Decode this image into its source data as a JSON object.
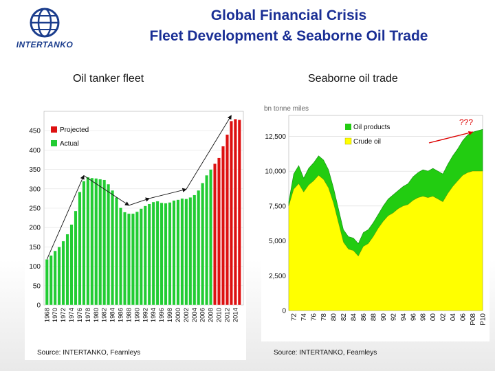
{
  "header": {
    "logo_text": "INTERTANKO",
    "title_line1": "Global Financial Crisis",
    "title_line2": "Fleet Development & Seaborne Oil Trade"
  },
  "left": {
    "heading": "Oil tanker fleet",
    "source": "Source: INTERTANKO, Fearnleys"
  },
  "right": {
    "heading": "Seaborne oil trade",
    "source": "Source: INTERTANKO, Fearnleys"
  },
  "colors": {
    "actual": "#22cc33",
    "projected": "#dd1111",
    "crude": "#ffff00",
    "products": "#22cc11",
    "title": "#1a2f95",
    "annotation": "#dd0000"
  },
  "chart_data": [
    {
      "type": "bar",
      "title": "Oil tanker fleet",
      "ylim": [
        0,
        500
      ],
      "yticks": [
        0,
        50,
        100,
        150,
        200,
        250,
        300,
        350,
        400,
        450
      ],
      "legend": [
        "Projected",
        "Actual"
      ],
      "legend_position": "top-left",
      "x_tick_labels": [
        "1968",
        "1970",
        "1972",
        "1974",
        "1976",
        "1978",
        "1980",
        "1982",
        "1984",
        "1986",
        "1988",
        "1990",
        "1992",
        "1994",
        "1996",
        "1998",
        "2000",
        "2002",
        "2004",
        "2006",
        "2008",
        "2010",
        "2012",
        "2014"
      ],
      "years": [
        1968,
        1969,
        1970,
        1971,
        1972,
        1973,
        1974,
        1975,
        1976,
        1977,
        1978,
        1979,
        1980,
        1981,
        1982,
        1983,
        1984,
        1985,
        1986,
        1987,
        1988,
        1989,
        1990,
        1991,
        1992,
        1993,
        1994,
        1995,
        1996,
        1997,
        1998,
        1999,
        2000,
        2001,
        2002,
        2003,
        2004,
        2005,
        2006,
        2007,
        2008,
        2009,
        2010,
        2011,
        2012,
        2013,
        2014,
        2015
      ],
      "values": [
        118,
        128,
        140,
        150,
        165,
        183,
        208,
        243,
        292,
        320,
        330,
        328,
        327,
        325,
        323,
        312,
        296,
        278,
        251,
        240,
        236,
        236,
        241,
        249,
        256,
        261,
        266,
        268,
        264,
        263,
        265,
        270,
        272,
        275,
        274,
        278,
        284,
        296,
        315,
        335,
        350,
        365,
        380,
        410,
        440,
        475,
        480,
        478
      ],
      "status": [
        "Actual",
        "Actual",
        "Actual",
        "Actual",
        "Actual",
        "Actual",
        "Actual",
        "Actual",
        "Actual",
        "Actual",
        "Actual",
        "Actual",
        "Actual",
        "Actual",
        "Actual",
        "Actual",
        "Actual",
        "Actual",
        "Actual",
        "Actual",
        "Actual",
        "Actual",
        "Actual",
        "Actual",
        "Actual",
        "Actual",
        "Actual",
        "Actual",
        "Actual",
        "Actual",
        "Actual",
        "Actual",
        "Actual",
        "Actual",
        "Actual",
        "Actual",
        "Actual",
        "Actual",
        "Actual",
        "Actual",
        "Actual",
        "Projected",
        "Projected",
        "Projected",
        "Projected",
        "Projected",
        "Projected",
        "Projected"
      ]
    },
    {
      "type": "area",
      "title": "Seaborne oil trade",
      "ylabel": "bn tonne miles",
      "ylim": [
        0,
        14000
      ],
      "yticks": [
        0,
        2500,
        5000,
        7500,
        10000,
        12500
      ],
      "ytick_labels": [
        "0",
        "2,500",
        "5,000",
        "7,500",
        "10,000",
        "12,500"
      ],
      "x_tick_labels": [
        "72",
        "74",
        "76",
        "78",
        "80",
        "82",
        "84",
        "86",
        "88",
        "90",
        "92",
        "94",
        "96",
        "98",
        "00",
        "02",
        "04",
        "06",
        "P08",
        "P10"
      ],
      "annotation": "???",
      "legend_position": "top-left",
      "x": [
        1971,
        1972,
        1973,
        1974,
        1975,
        1976,
        1977,
        1978,
        1979,
        1980,
        1981,
        1982,
        1983,
        1984,
        1985,
        1986,
        1987,
        1988,
        1989,
        1990,
        1991,
        1992,
        1993,
        1994,
        1995,
        1996,
        1997,
        1998,
        1999,
        2000,
        2001,
        2002,
        2003,
        2004,
        2005,
        2006,
        2007,
        2008,
        2009,
        2010
      ],
      "series": [
        {
          "name": "Crude oil",
          "values": [
            7500,
            8700,
            9100,
            8500,
            9000,
            9300,
            9700,
            9400,
            8800,
            7700,
            6300,
            4900,
            4400,
            4300,
            3900,
            4600,
            4800,
            5300,
            5900,
            6400,
            6800,
            7000,
            7300,
            7500,
            7600,
            7900,
            8100,
            8200,
            8100,
            8200,
            8000,
            7800,
            8400,
            8900,
            9300,
            9700,
            9900,
            10000,
            10000,
            10000
          ]
        },
        {
          "name": "Oil products",
          "values": [
            300,
            1100,
            1300,
            1000,
            1200,
            1300,
            1400,
            1400,
            1300,
            1100,
            1000,
            900,
            900,
            900,
            900,
            1000,
            1000,
            1000,
            1000,
            1100,
            1200,
            1300,
            1300,
            1400,
            1500,
            1700,
            1800,
            1900,
            1900,
            2000,
            2000,
            2000,
            2100,
            2200,
            2300,
            2500,
            2700,
            2800,
            2900,
            3000
          ]
        }
      ]
    }
  ]
}
